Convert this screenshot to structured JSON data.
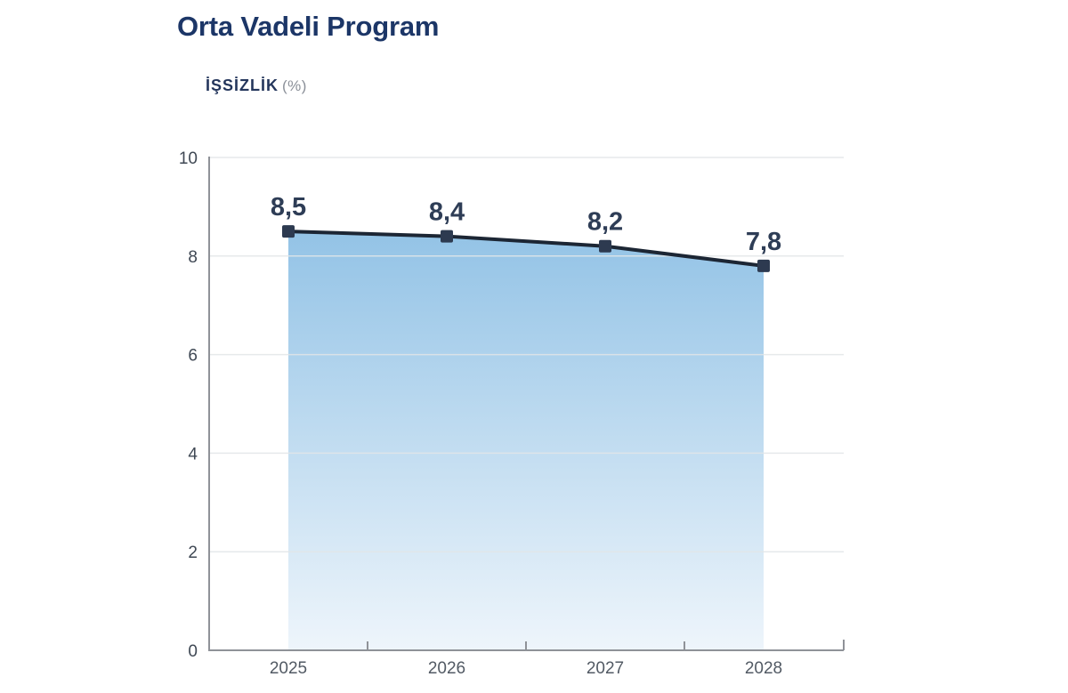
{
  "page": {
    "title": "Orta Vadeli Program",
    "subtitle": "İŞSİZLİK",
    "subtitle_unit": "(%)"
  },
  "chart_data": {
    "type": "area",
    "title": "Orta Vadeli Program",
    "series_label": "İŞSİZLİK (%)",
    "categories": [
      "2025",
      "2026",
      "2027",
      "2028"
    ],
    "values": [
      8.5,
      8.4,
      8.2,
      7.8
    ],
    "point_labels": [
      "8,5",
      "8,4",
      "8,2",
      "7,8"
    ],
    "ylim": [
      0,
      10
    ],
    "yticks": [
      0,
      2,
      4,
      6,
      8,
      10
    ],
    "grid": true,
    "legend": false,
    "colors": {
      "title": "#1c3667",
      "subtitle": "#24365c",
      "subtitle_unit": "#8b9099",
      "line": "#1c2634",
      "marker": "#2d3a50",
      "point_label": "#2e3d56",
      "area_top": "#93c3e6",
      "area_bottom": "#eef5fb",
      "grid": "#e2e5e8",
      "axis": "#8f9298",
      "y_tick_label": "#3f4854",
      "x_tick_label": "#525a64"
    }
  }
}
